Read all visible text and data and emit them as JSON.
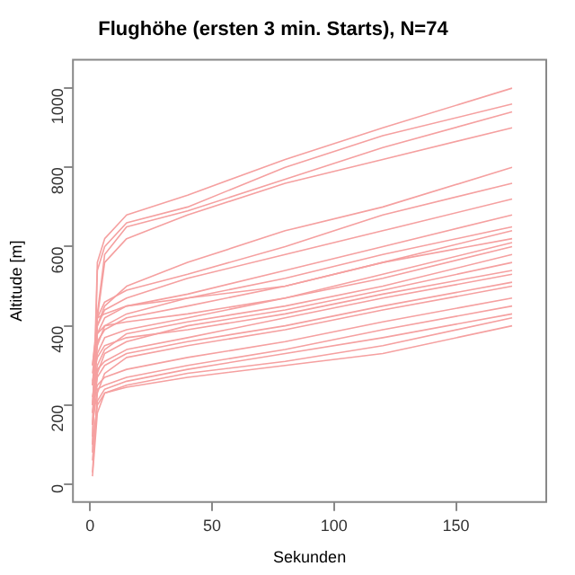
{
  "chart_data": {
    "type": "line",
    "title": "Flughöhe (ersten 3 min. Starts), N=74",
    "xlabel": "Sekunden",
    "ylabel": "Altitude [m]",
    "x": [
      1,
      3,
      6,
      15,
      40,
      80,
      120,
      173
    ],
    "xlim": [
      -7,
      187
    ],
    "xticks": [
      0,
      50,
      100,
      150
    ],
    "ylim": [
      -45,
      1072
    ],
    "yticks": [
      0,
      200,
      400,
      600,
      800,
      1000
    ],
    "grid": false,
    "legend": false,
    "marker": "none",
    "line_style": "solid",
    "series": [
      {
        "color": "#f5a0a0",
        "values": [
          120,
          560,
          620,
          680,
          730,
          820,
          900,
          1000
        ]
      },
      {
        "color": "#f5a0a0",
        "values": [
          80,
          540,
          600,
          660,
          700,
          800,
          880,
          960
        ]
      },
      {
        "color": "#f5a0a0",
        "values": [
          200,
          430,
          580,
          650,
          690,
          770,
          850,
          940
        ]
      },
      {
        "color": "#f5a0a0",
        "values": [
          150,
          420,
          560,
          620,
          680,
          760,
          820,
          900
        ]
      },
      {
        "color": "#f5a0a0",
        "values": [
          100,
          400,
          450,
          500,
          560,
          640,
          700,
          800
        ]
      },
      {
        "color": "#f5a0a0",
        "values": [
          250,
          420,
          460,
          490,
          530,
          600,
          680,
          760
        ]
      },
      {
        "color": "#f5a0a0",
        "values": [
          300,
          400,
          440,
          470,
          520,
          580,
          640,
          720
        ]
      },
      {
        "color": "#f5a0a0",
        "values": [
          200,
          380,
          420,
          450,
          480,
          540,
          600,
          680
        ]
      },
      {
        "color": "#f5a0a0",
        "values": [
          180,
          350,
          400,
          430,
          470,
          520,
          580,
          650
        ]
      },
      {
        "color": "#f5a0a0",
        "values": [
          300,
          420,
          430,
          450,
          470,
          500,
          560,
          620
        ]
      },
      {
        "color": "#f5a0a0",
        "values": [
          250,
          360,
          390,
          420,
          450,
          500,
          560,
          640
        ]
      },
      {
        "color": "#f5a0a0",
        "values": [
          280,
          380,
          400,
          410,
          430,
          470,
          530,
          610
        ]
      },
      {
        "color": "#f5a0a0",
        "values": [
          250,
          330,
          370,
          390,
          420,
          470,
          520,
          600
        ]
      },
      {
        "color": "#f5a0a0",
        "values": [
          220,
          300,
          340,
          380,
          410,
          450,
          500,
          580
        ]
      },
      {
        "color": "#f5a0a0",
        "values": [
          150,
          280,
          330,
          360,
          400,
          440,
          490,
          560
        ]
      },
      {
        "color": "#f5a0a0",
        "values": [
          260,
          320,
          350,
          370,
          390,
          430,
          480,
          540
        ]
      },
      {
        "color": "#f5a0a0",
        "values": [
          200,
          290,
          310,
          340,
          370,
          420,
          470,
          530
        ]
      },
      {
        "color": "#f5a0a0",
        "values": [
          180,
          270,
          300,
          330,
          360,
          400,
          450,
          510
        ]
      },
      {
        "color": "#f5a0a0",
        "values": [
          30,
          230,
          280,
          320,
          350,
          390,
          440,
          500
        ]
      },
      {
        "color": "#f5a0a0",
        "values": [
          200,
          250,
          270,
          290,
          320,
          360,
          410,
          470
        ]
      },
      {
        "color": "#f5a0a0",
        "values": [
          150,
          240,
          250,
          270,
          300,
          340,
          390,
          450
        ]
      },
      {
        "color": "#f5a0a0",
        "values": [
          60,
          210,
          240,
          260,
          290,
          330,
          370,
          430
        ]
      },
      {
        "color": "#f5a0a0",
        "values": [
          100,
          200,
          230,
          250,
          280,
          310,
          350,
          420
        ]
      },
      {
        "color": "#f5a0a0",
        "values": [
          20,
          180,
          230,
          245,
          270,
          300,
          330,
          400
        ]
      }
    ]
  }
}
